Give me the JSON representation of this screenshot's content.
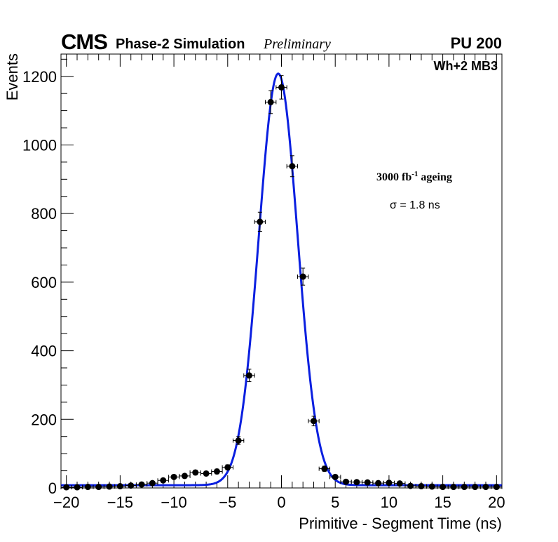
{
  "header": {
    "experiment": "CMS",
    "subtitle": "Phase-2 Simulation",
    "status": "Preliminary",
    "pileup": "PU 200",
    "channel": "Wh+2 MB3"
  },
  "annotations": {
    "ageing_prefix": "3000 fb",
    "ageing_exp": "-1",
    "ageing_suffix": " ageing",
    "sigma": "σ = 1.8 ns"
  },
  "chart_data": {
    "type": "scatter",
    "xlabel": "Primitive - Segment Time (ns)",
    "ylabel": "Events",
    "xlim": [
      -20.5,
      20.5
    ],
    "ylim": [
      0,
      1265
    ],
    "xticks": [
      -20,
      -15,
      -10,
      -5,
      0,
      5,
      10,
      15,
      20
    ],
    "xtick_labels": [
      "−20",
      "−15",
      "−10",
      "−5",
      "0",
      "5",
      "10",
      "15",
      "20"
    ],
    "yticks": [
      0,
      200,
      400,
      600,
      800,
      1000,
      1200
    ],
    "ytick_labels": [
      "0",
      "200",
      "400",
      "600",
      "800",
      "1000",
      "1200"
    ],
    "grid": false,
    "series": [
      {
        "kind": "points",
        "color": "#000000",
        "x_halfwidth": 0.5,
        "x": [
          -20,
          -19,
          -18,
          -17,
          -16,
          -15,
          -14,
          -13,
          -12,
          -11,
          -10,
          -9,
          -8,
          -7,
          -6,
          -5,
          -4,
          -3,
          -2,
          -1,
          0,
          1,
          2,
          3,
          4,
          5,
          6,
          7,
          8,
          9,
          10,
          11,
          12,
          13,
          14,
          15,
          16,
          17,
          18,
          19,
          20
        ],
        "y": [
          2,
          2,
          3,
          3,
          4,
          5,
          7,
          10,
          14,
          22,
          32,
          35,
          45,
          42,
          48,
          60,
          138,
          328,
          776,
          1125,
          1168,
          938,
          616,
          195,
          56,
          32,
          18,
          17,
          16,
          14,
          15,
          13,
          6,
          5,
          4,
          3,
          3,
          3,
          3,
          3,
          3
        ],
        "yerr": [
          1.5,
          1.5,
          1.8,
          1.8,
          2,
          2.2,
          2.6,
          3.2,
          3.7,
          4.7,
          5.7,
          5.9,
          6.7,
          6.5,
          6.9,
          7.7,
          11.7,
          18.1,
          27.9,
          33.5,
          34.2,
          30.6,
          24.8,
          14,
          7.5,
          5.7,
          4.2,
          4.1,
          4,
          3.7,
          3.9,
          3.6,
          2.4,
          2.2,
          2,
          1.8,
          1.8,
          1.8,
          1.8,
          1.8,
          1.8
        ]
      },
      {
        "kind": "fit",
        "color": "#0a1fe0",
        "amplitude": 1200,
        "mean": -0.3,
        "sigma": 1.8,
        "baseline": 8
      }
    ]
  }
}
